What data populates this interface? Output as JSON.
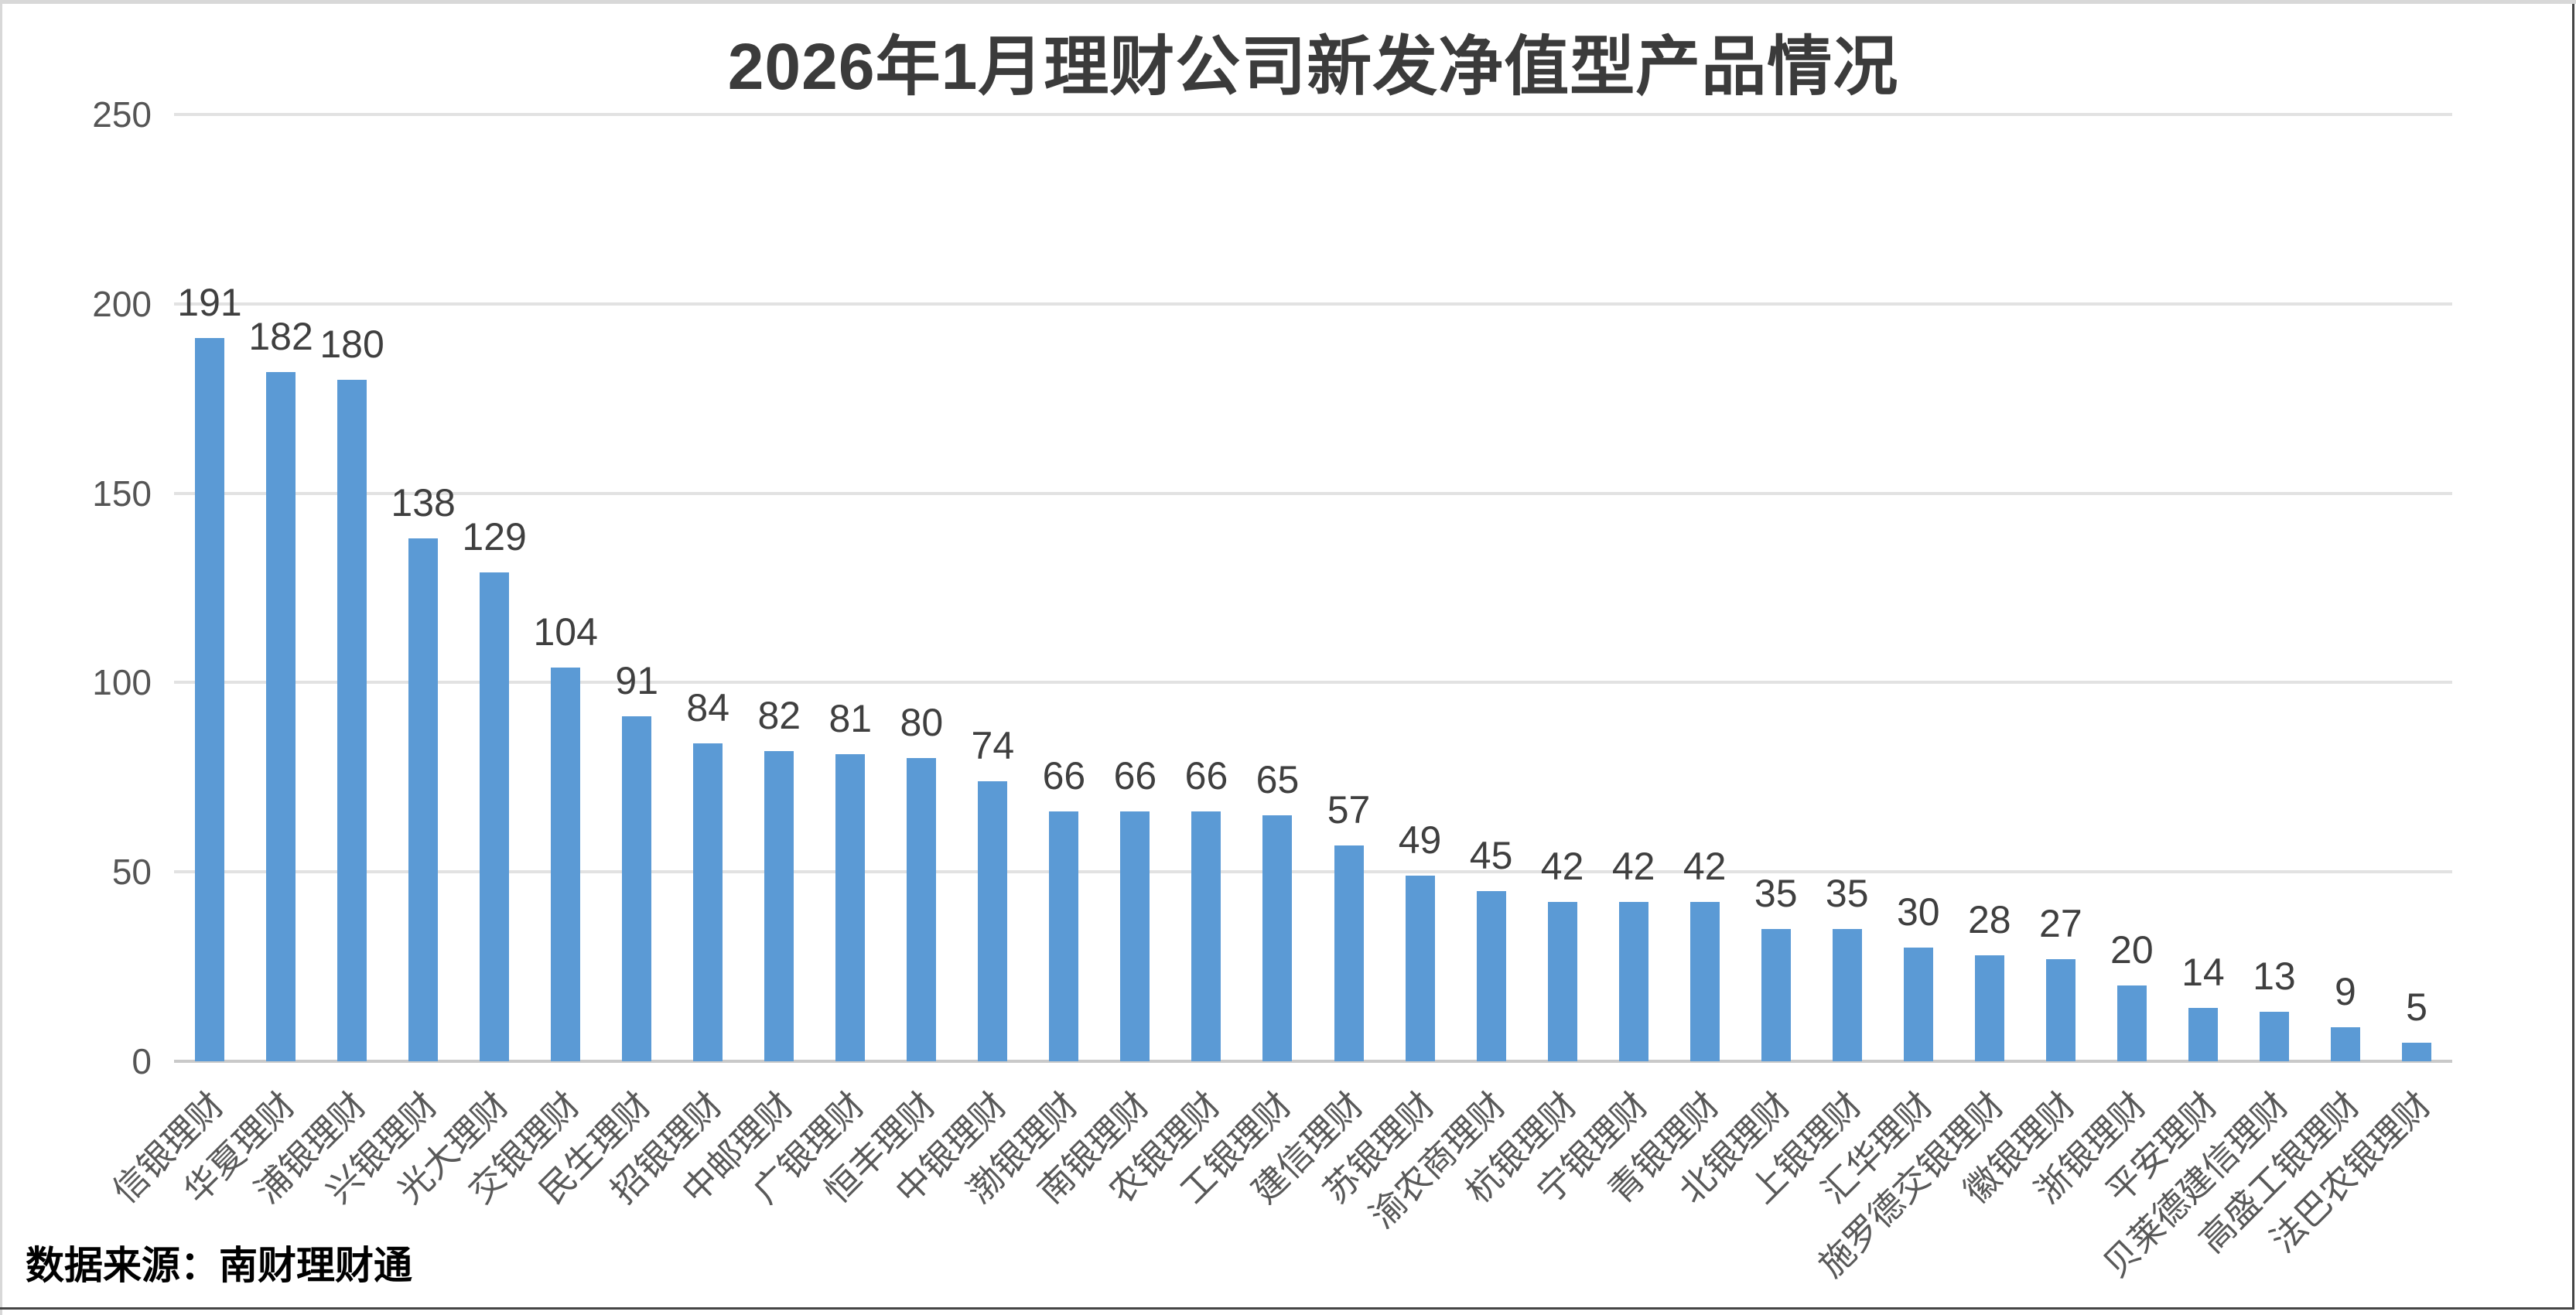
{
  "chart_data": {
    "type": "bar",
    "title": "2026年1月理财公司新发净值型产品情况",
    "categories": [
      "信银理财",
      "华夏理财",
      "浦银理财",
      "兴银理财",
      "光大理财",
      "交银理财",
      "民生理财",
      "招银理财",
      "中邮理财",
      "广银理财",
      "恒丰理财",
      "中银理财",
      "渤银理财",
      "南银理财",
      "农银理财",
      "工银理财",
      "建信理财",
      "苏银理财",
      "渝农商理财",
      "杭银理财",
      "宁银理财",
      "青银理财",
      "北银理财",
      "上银理财",
      "汇华理财",
      "施罗德交银理财",
      "徽银理财",
      "浙银理财",
      "平安理财",
      "贝莱德建信理财",
      "高盛工银理财",
      "法巴农银理财"
    ],
    "values": [
      191,
      182,
      180,
      138,
      129,
      104,
      91,
      84,
      82,
      81,
      80,
      74,
      66,
      66,
      66,
      65,
      57,
      49,
      45,
      42,
      42,
      42,
      35,
      35,
      30,
      28,
      27,
      20,
      14,
      13,
      9,
      5
    ],
    "xlabel": "",
    "ylabel": "",
    "ylim": [
      0,
      250
    ],
    "y_ticks": [
      0,
      50,
      100,
      150,
      200,
      250
    ],
    "grid": "horizontal",
    "legend": "none",
    "data_labels": true
  },
  "source_note": "数据来源：南财理财通",
  "colors": {
    "bar": "#5B9AD5",
    "gridline": "#E2E2E2",
    "axis_line": "#C9C9C9",
    "title_text": "#3B3B3B",
    "tick_text": "#555555",
    "data_label_text": "#3F3F3F",
    "category_text": "#595959",
    "source_text": "#000000",
    "background": "#FFFFFF",
    "frame_light": "#D8D8D8",
    "frame_dark": "#454545"
  }
}
